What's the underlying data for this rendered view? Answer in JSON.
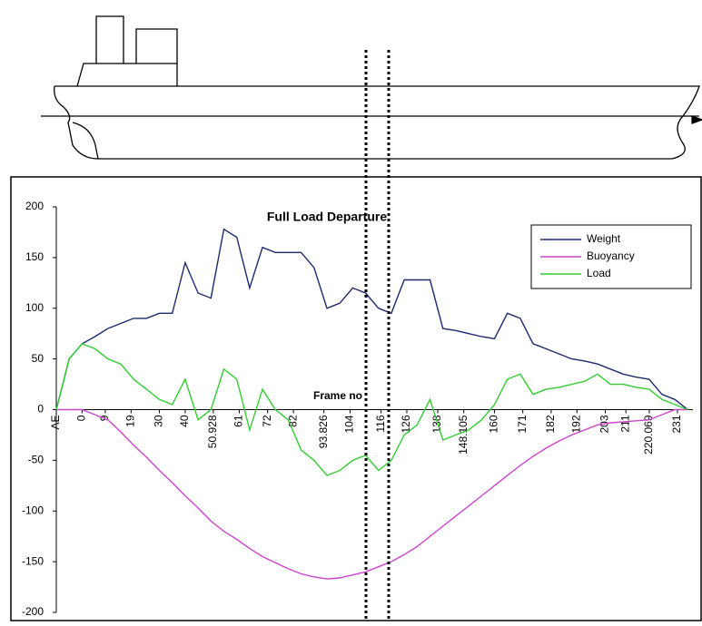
{
  "chart_data": {
    "type": "line",
    "title": "Full Load Departure",
    "x_label": "Frame no",
    "x": [
      -10,
      -5,
      0,
      5,
      10,
      15,
      20,
      25,
      30,
      35,
      40,
      45,
      50,
      55,
      60,
      65,
      70,
      75,
      80,
      85,
      90,
      95,
      100,
      105,
      110,
      115,
      120,
      125,
      130,
      135,
      140,
      145,
      150,
      155,
      160,
      165,
      170,
      175,
      180,
      185,
      190,
      195,
      200,
      205,
      210,
      215,
      220,
      225,
      230,
      235
    ],
    "series": [
      {
        "name": "Weight",
        "color": "#1f2a6e",
        "values": [
          0,
          50,
          65,
          72,
          80,
          85,
          90,
          90,
          95,
          95,
          145,
          115,
          110,
          178,
          170,
          120,
          160,
          155,
          155,
          155,
          140,
          100,
          105,
          120,
          115,
          100,
          95,
          128,
          128,
          128,
          80,
          78,
          75,
          72,
          70,
          95,
          90,
          65,
          60,
          55,
          50,
          48,
          45,
          40,
          35,
          32,
          30,
          15,
          10,
          0
        ]
      },
      {
        "name": "Buoyancy",
        "color": "#cc44cc",
        "values": [
          0,
          0,
          0,
          -5,
          -10,
          -22,
          -35,
          -47,
          -60,
          -72,
          -85,
          -97,
          -110,
          -120,
          -128,
          -137,
          -145,
          -151,
          -157,
          -162,
          -165,
          -167,
          -166,
          -163,
          -160,
          -155,
          -150,
          -143,
          -135,
          -125,
          -115,
          -105,
          -95,
          -85,
          -75,
          -65,
          -55,
          -46,
          -38,
          -31,
          -25,
          -20,
          -15,
          -13,
          -12,
          -11,
          -10,
          -5,
          0,
          0
        ]
      },
      {
        "name": "Load",
        "color": "#33cc33",
        "values": [
          0,
          50,
          65,
          60,
          50,
          45,
          30,
          20,
          10,
          5,
          30,
          -10,
          0,
          40,
          30,
          -20,
          20,
          0,
          -10,
          -40,
          -50,
          -65,
          -60,
          -50,
          -45,
          -60,
          -50,
          -25,
          -15,
          10,
          -30,
          -25,
          -20,
          -10,
          5,
          30,
          35,
          15,
          20,
          22,
          25,
          28,
          35,
          25,
          25,
          22,
          20,
          10,
          5,
          0
        ]
      }
    ],
    "xlim": [
      -10,
      237
    ],
    "xticks": [
      {
        "value": -10,
        "label": "AE"
      },
      0,
      9,
      19,
      30,
      40,
      50.928,
      61,
      72,
      82,
      93.826,
      104,
      116,
      126,
      138,
      148.105,
      160,
      171,
      182,
      192,
      203,
      211,
      220.069,
      231
    ],
    "ylim": [
      -200,
      200
    ],
    "yticks": [
      200,
      150,
      100,
      50,
      0,
      -50,
      -100,
      -150,
      -200
    ],
    "legend": "upper right"
  }
}
